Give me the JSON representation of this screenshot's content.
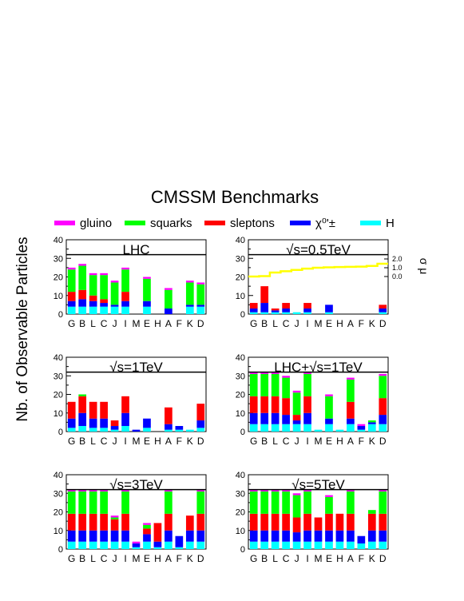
{
  "title": "CMSSM Benchmarks",
  "ylabel": "Nb. of Observable Particles",
  "legend": [
    {
      "label": "gluino",
      "color": "#ff00ff"
    },
    {
      "label": "squarks",
      "color": "#00ff00"
    },
    {
      "label": "sleptons",
      "color": "#ff0000"
    },
    {
      "label": "χ⁰'±",
      "color": "#0000ff"
    },
    {
      "label": "H",
      "color": "#00ffff"
    }
  ],
  "colors": {
    "gluino": "#ff00ff",
    "squarks": "#00ff00",
    "sleptons": "#ff0000",
    "chi": "#0000ff",
    "H": "#00ffff",
    "sigma_line": "#ffff00"
  },
  "chart_data": [
    {
      "type": "bar",
      "stacked": true,
      "title": "LHC",
      "categories": [
        "G",
        "B",
        "L",
        "C",
        "J",
        "I",
        "M",
        "E",
        "H",
        "A",
        "F",
        "K",
        "D"
      ],
      "ylim": [
        0,
        40
      ],
      "yticks": [
        0,
        10,
        20,
        30,
        40
      ],
      "reference_line": 32,
      "series": [
        {
          "name": "H",
          "values": [
            4,
            4,
            4,
            4,
            4,
            4,
            0,
            4,
            0,
            0,
            0,
            4,
            4
          ]
        },
        {
          "name": "χ⁰'±",
          "values": [
            3,
            4,
            3,
            2,
            1,
            3,
            0,
            3,
            0,
            3,
            0,
            1,
            1
          ]
        },
        {
          "name": "sleptons",
          "values": [
            5,
            5,
            3,
            2,
            0,
            5,
            0,
            0,
            0,
            0,
            0,
            0,
            0
          ]
        },
        {
          "name": "squarks",
          "values": [
            12,
            13,
            11,
            13,
            12,
            12,
            0,
            12,
            0,
            10,
            0,
            12,
            11
          ]
        },
        {
          "name": "gluino",
          "values": [
            1,
            1,
            1,
            1,
            1,
            1,
            0,
            1,
            0,
            1,
            0,
            1,
            1
          ]
        }
      ]
    },
    {
      "type": "bar",
      "stacked": true,
      "title": "√s=0.5TeV",
      "categories": [
        "G",
        "B",
        "L",
        "C",
        "J",
        "I",
        "M",
        "E",
        "H",
        "A",
        "F",
        "K",
        "D"
      ],
      "ylim": [
        0,
        40
      ],
      "yticks": [
        0,
        10,
        20,
        30,
        40
      ],
      "reference_line": 32,
      "series": [
        {
          "name": "H",
          "values": [
            1,
            1,
            1,
            1,
            1,
            1,
            0,
            1,
            0,
            0,
            0,
            0,
            1
          ]
        },
        {
          "name": "χ⁰'±",
          "values": [
            2,
            5,
            1,
            2,
            0,
            2,
            0,
            4,
            0,
            0,
            0,
            0,
            2
          ]
        },
        {
          "name": "sleptons",
          "values": [
            3,
            9,
            1,
            3,
            0,
            3,
            0,
            0,
            0,
            0,
            0,
            0,
            2
          ]
        },
        {
          "name": "squarks",
          "values": [
            0,
            0,
            0,
            0,
            0,
            0,
            0,
            0,
            0,
            0,
            0,
            0,
            0
          ]
        },
        {
          "name": "gluino",
          "values": [
            0,
            0,
            0,
            0,
            0,
            0,
            0,
            0,
            0,
            0,
            0,
            0,
            0
          ]
        }
      ],
      "sigma_mu_curve": {
        "yticks": [
          0.0,
          1.0,
          2.0
        ],
        "label": "σ μ",
        "values": [
          0.0,
          0.05,
          0.45,
          0.6,
          0.75,
          0.9,
          1.0,
          1.05,
          1.08,
          1.1,
          1.12,
          1.2,
          1.45
        ]
      }
    },
    {
      "type": "bar",
      "stacked": true,
      "title": "√s=1TeV",
      "categories": [
        "G",
        "B",
        "L",
        "C",
        "J",
        "I",
        "M",
        "E",
        "H",
        "A",
        "F",
        "K",
        "D"
      ],
      "ylim": [
        0,
        40
      ],
      "yticks": [
        0,
        10,
        20,
        30,
        40
      ],
      "reference_line": 32,
      "series": [
        {
          "name": "H",
          "values": [
            2,
            3,
            2,
            2,
            1,
            3,
            0,
            2,
            0,
            1,
            1,
            1,
            2
          ]
        },
        {
          "name": "χ⁰'±",
          "values": [
            5,
            7,
            5,
            5,
            2,
            7,
            1,
            5,
            0,
            3,
            2,
            0,
            4
          ]
        },
        {
          "name": "sleptons",
          "values": [
            9,
            9,
            9,
            9,
            3,
            9,
            0,
            0,
            0,
            9,
            0,
            0,
            9
          ]
        },
        {
          "name": "squarks",
          "values": [
            0,
            1,
            0,
            0,
            0,
            0,
            0,
            0,
            0,
            0,
            0,
            0,
            0
          ]
        },
        {
          "name": "gluino",
          "values": [
            0,
            0,
            0,
            0,
            0,
            0,
            0,
            0,
            0,
            0,
            0,
            0,
            0
          ]
        }
      ]
    },
    {
      "type": "bar",
      "stacked": true,
      "title": "LHC+√s=1TeV",
      "categories": [
        "G",
        "B",
        "L",
        "C",
        "J",
        "I",
        "M",
        "E",
        "H",
        "A",
        "F",
        "K",
        "D"
      ],
      "ylim": [
        0,
        40
      ],
      "yticks": [
        0,
        10,
        20,
        30,
        40
      ],
      "reference_line": 32,
      "series": [
        {
          "name": "H",
          "values": [
            4,
            4,
            4,
            4,
            4,
            4,
            1,
            4,
            1,
            4,
            1,
            4,
            4
          ]
        },
        {
          "name": "χ⁰'±",
          "values": [
            6,
            6,
            6,
            5,
            2,
            6,
            0,
            3,
            0,
            3,
            2,
            1,
            5
          ]
        },
        {
          "name": "sleptons",
          "values": [
            9,
            9,
            9,
            9,
            3,
            9,
            0,
            0,
            0,
            9,
            0,
            0,
            9
          ]
        },
        {
          "name": "squarks",
          "values": [
            12,
            12,
            12,
            11,
            12,
            12,
            0,
            12,
            0,
            12,
            0,
            1,
            12
          ]
        },
        {
          "name": "gluino",
          "values": [
            1,
            1,
            1,
            1,
            1,
            1,
            0,
            1,
            0,
            1,
            1,
            0,
            1
          ]
        }
      ]
    },
    {
      "type": "bar",
      "stacked": true,
      "title": "√s=3TeV",
      "categories": [
        "G",
        "B",
        "L",
        "C",
        "J",
        "I",
        "M",
        "E",
        "H",
        "A",
        "F",
        "K",
        "D"
      ],
      "ylim": [
        0,
        40
      ],
      "yticks": [
        0,
        10,
        20,
        30,
        40
      ],
      "reference_line": 32,
      "series": [
        {
          "name": "H",
          "values": [
            4,
            4,
            4,
            4,
            4,
            4,
            1,
            4,
            1,
            4,
            1,
            4,
            4
          ]
        },
        {
          "name": "χ⁰'±",
          "values": [
            6,
            6,
            6,
            6,
            6,
            6,
            2,
            4,
            3,
            6,
            6,
            6,
            6
          ]
        },
        {
          "name": "sleptons",
          "values": [
            9,
            9,
            9,
            9,
            6,
            9,
            0,
            3,
            10,
            9,
            0,
            8,
            9
          ]
        },
        {
          "name": "squarks",
          "values": [
            12,
            12,
            12,
            12,
            1,
            12,
            0,
            2,
            0,
            12,
            0,
            0,
            12
          ]
        },
        {
          "name": "gluino",
          "values": [
            1,
            1,
            1,
            1,
            1,
            1,
            1,
            1,
            0,
            1,
            0,
            0,
            1
          ]
        }
      ]
    },
    {
      "type": "bar",
      "stacked": true,
      "title": "√s=5TeV",
      "categories": [
        "G",
        "B",
        "L",
        "C",
        "J",
        "I",
        "M",
        "E",
        "H",
        "A",
        "F",
        "K",
        "D"
      ],
      "ylim": [
        0,
        40
      ],
      "yticks": [
        0,
        10,
        20,
        30,
        40
      ],
      "reference_line": 32,
      "series": [
        {
          "name": "H",
          "values": [
            4,
            4,
            4,
            4,
            4,
            4,
            4,
            4,
            4,
            4,
            3,
            4,
            4
          ]
        },
        {
          "name": "χ⁰'±",
          "values": [
            6,
            6,
            6,
            6,
            5,
            6,
            6,
            6,
            6,
            6,
            4,
            6,
            6
          ]
        },
        {
          "name": "sleptons",
          "values": [
            9,
            9,
            9,
            9,
            8,
            9,
            7,
            9,
            9,
            9,
            0,
            9,
            9
          ]
        },
        {
          "name": "squarks",
          "values": [
            12,
            12,
            12,
            12,
            12,
            12,
            0,
            9,
            0,
            12,
            0,
            2,
            12
          ]
        },
        {
          "name": "gluino",
          "values": [
            1,
            1,
            1,
            1,
            1,
            1,
            0,
            1,
            0,
            1,
            0,
            0,
            1
          ]
        }
      ]
    }
  ]
}
